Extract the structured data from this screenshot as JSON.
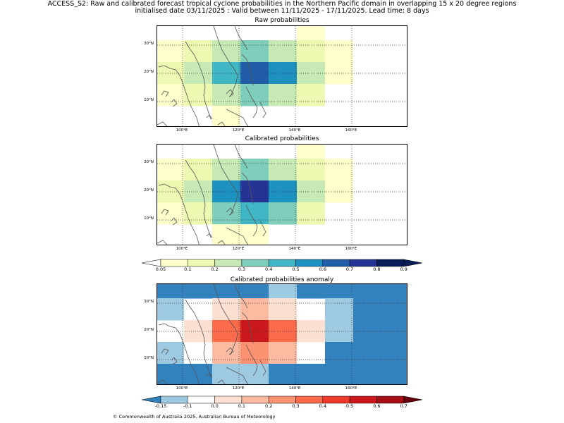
{
  "header": {
    "title_line1": "ACCESS_S2: Raw and calibrated forecast tropical cyclone probabilities in the Northern Pacific domain in overlapping 15 x 20 degree regions",
    "title_line2": "initialised date 03/11/2025 :  Valid between 11/11/2025 - 17/11/2025. Lead time: 8 days"
  },
  "panels": [
    {
      "title": "Raw probabilities",
      "grid": [
        [
          "#ffffff",
          "#ffffff",
          "#ffffff",
          "#ffffff",
          "#ffffff",
          "#ffffcc",
          "#ffffff",
          "#ffffff",
          "#ffffff"
        ],
        [
          "#ffffcc",
          "#edf8b1",
          "#c7e9b4",
          "#7fcdbb",
          "#c7e9b4",
          "#edf8b1",
          "#ffffcc",
          "#ffffff",
          "#ffffff"
        ],
        [
          "#edf8b1",
          "#c7e9b4",
          "#41b6c4",
          "#225ea8",
          "#1d91c0",
          "#c7e9b4",
          "#ffffcc",
          "#ffffff",
          "#ffffff"
        ],
        [
          "#ffffcc",
          "#edf8b1",
          "#c7e9b4",
          "#7fcdbb",
          "#c7e9b4",
          "#edf8b1",
          "#ffffff",
          "#ffffff",
          "#ffffff"
        ],
        [
          "#ffffff",
          "#ffffff",
          "#ffffcc",
          "#ffffff",
          "#ffffff",
          "#ffffff",
          "#ffffff",
          "#ffffff",
          "#ffffff"
        ]
      ]
    },
    {
      "title": "Calibrated probabilities",
      "grid": [
        [
          "#ffffff",
          "#ffffff",
          "#ffffff",
          "#ffffff",
          "#ffffff",
          "#ffffcc",
          "#ffffff",
          "#ffffff",
          "#ffffff"
        ],
        [
          "#ffffcc",
          "#edf8b1",
          "#c7e9b4",
          "#7fcdbb",
          "#c7e9b4",
          "#edf8b1",
          "#ffffcc",
          "#ffffff",
          "#ffffff"
        ],
        [
          "#edf8b1",
          "#c7e9b4",
          "#1d91c0",
          "#253494",
          "#1d91c0",
          "#c7e9b4",
          "#ffffcc",
          "#ffffff",
          "#ffffff"
        ],
        [
          "#ffffcc",
          "#edf8b1",
          "#7fcdbb",
          "#41b6c4",
          "#7fcdbb",
          "#edf8b1",
          "#ffffff",
          "#ffffff",
          "#ffffff"
        ],
        [
          "#ffffff",
          "#ffffff",
          "#ffffcc",
          "#ffffcc",
          "#ffffff",
          "#ffffff",
          "#ffffff",
          "#ffffff",
          "#ffffff"
        ]
      ]
    },
    {
      "title": "Calibrated probabilities anomaly",
      "grid": [
        [
          "#3182bd",
          "#3182bd",
          "#3182bd",
          "#3182bd",
          "#9ecae1",
          "#3182bd",
          "#3182bd",
          "#3182bd",
          "#3182bd"
        ],
        [
          "#9ecae1",
          "#ffffff",
          "#fee0d2",
          "#fcbba1",
          "#fee0d2",
          "#ffffff",
          "#9ecae1",
          "#3182bd",
          "#3182bd"
        ],
        [
          "#ffffff",
          "#fee0d2",
          "#fb6a4a",
          "#cb181d",
          "#fb6a4a",
          "#fee0d2",
          "#9ecae1",
          "#3182bd",
          "#3182bd"
        ],
        [
          "#9ecae1",
          "#ffffff",
          "#fcbba1",
          "#fc9272",
          "#fcbba1",
          "#ffffff",
          "#3182bd",
          "#3182bd",
          "#3182bd"
        ],
        [
          "#3182bd",
          "#3182bd",
          "#9ecae1",
          "#9ecae1",
          "#3182bd",
          "#3182bd",
          "#3182bd",
          "#3182bd",
          "#3182bd"
        ]
      ]
    }
  ],
  "axes": {
    "lat_labels": [
      "30°N",
      "20°N",
      "10°N"
    ],
    "lon_labels": [
      "100°E",
      "120°E",
      "140°E",
      "160°E"
    ]
  },
  "colorbar_prob": {
    "labels": [
      "0.05",
      "0.1",
      "0.2",
      "0.3",
      "0.4",
      "0.5",
      "0.6",
      "0.7",
      "0.8",
      "0.9"
    ],
    "colors": [
      "#ffffcc",
      "#edf8b1",
      "#c7e9b4",
      "#7fcdbb",
      "#41b6c4",
      "#1d91c0",
      "#225ea8",
      "#253494",
      "#081d58"
    ],
    "under_color": "#ffffff",
    "over_color": "#081d58"
  },
  "colorbar_anom": {
    "labels": [
      "-0.15",
      "-0.1",
      "0.0",
      "0.1",
      "0.2",
      "0.3",
      "0.4",
      "0.5",
      "0.6",
      "0.7"
    ],
    "colors": [
      "#9ecae1",
      "#ffffff",
      "#fee0d2",
      "#fcbba1",
      "#fc9272",
      "#fb6a4a",
      "#ef3b2c",
      "#cb181d",
      "#a50f15"
    ],
    "under_color": "#3182bd",
    "over_color": "#67000d"
  },
  "footer": {
    "copyright": "© Commonwealth of Australia 2025, Australian Bureau of Meteorology"
  }
}
